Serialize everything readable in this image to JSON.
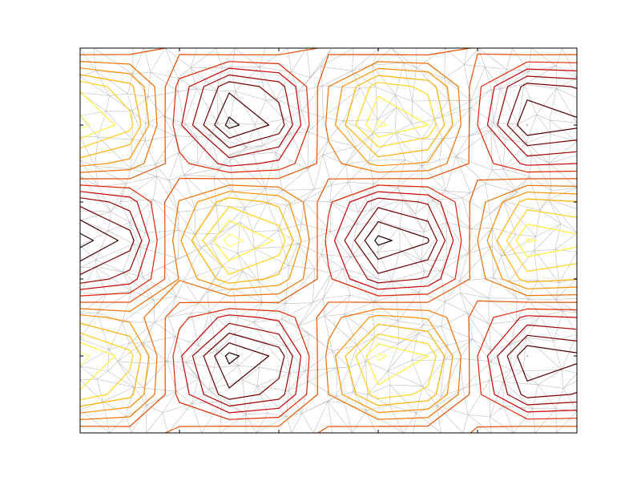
{
  "chart_data": {
    "type": "contour",
    "x": [
      0,
      0.5,
      1,
      1.5,
      2,
      2.5,
      3,
      3.5,
      4,
      4.5,
      5
    ],
    "y": [
      0,
      0.5,
      1,
      1.5,
      2,
      2.5,
      3,
      3.5,
      4,
      4.5,
      5
    ],
    "z": [
      [
        0.15,
        0.1,
        -0.04,
        -0.15,
        -0.11,
        0.03,
        0.14,
        0.12,
        -0.02,
        -0.14,
        -0.12
      ],
      [
        -0.72,
        -0.5,
        0.2,
        0.71,
        0.53,
        -0.15,
        -0.69,
        -0.56,
        0.11,
        0.67,
        0.59
      ],
      [
        -0.96,
        -0.66,
        0.27,
        0.95,
        0.7,
        -0.2,
        -0.93,
        -0.75,
        0.15,
        0.9,
        0.79
      ],
      [
        -0.36,
        -0.25,
        0.1,
        0.36,
        0.26,
        -0.08,
        -0.35,
        -0.28,
        0.06,
        0.34,
        0.3
      ],
      [
        0.55,
        0.38,
        -0.16,
        -0.55,
        -0.41,
        0.12,
        0.54,
        0.43,
        -0.08,
        -0.52,
        -0.46
      ],
      [
        0.98,
        0.68,
        -0.28,
        -0.97,
        -0.72,
        0.21,
        0.95,
        0.77,
        -0.15,
        -0.92,
        -0.81
      ],
      [
        0.55,
        0.38,
        -0.16,
        -0.55,
        -0.41,
        0.12,
        0.54,
        0.43,
        -0.08,
        -0.52,
        -0.46
      ],
      [
        -0.36,
        -0.25,
        0.1,
        0.36,
        0.26,
        -0.08,
        -0.35,
        -0.28,
        0.06,
        0.34,
        0.3
      ],
      [
        -0.96,
        -0.66,
        0.27,
        0.95,
        0.7,
        -0.2,
        -0.93,
        -0.75,
        0.15,
        0.9,
        0.79
      ],
      [
        -0.72,
        -0.5,
        0.2,
        0.71,
        0.53,
        -0.15,
        -0.69,
        -0.56,
        0.11,
        0.67,
        0.59
      ],
      [
        0.15,
        0.1,
        -0.04,
        -0.15,
        -0.11,
        0.03,
        0.14,
        0.12,
        -0.02,
        -0.14,
        -0.12
      ]
    ],
    "levels": [
      -0.9,
      -0.75,
      -0.6,
      -0.45,
      -0.3,
      -0.15,
      0,
      0.15,
      0.3,
      0.45,
      0.6,
      0.75,
      0.9
    ],
    "colors": [
      "#ffff66",
      "#fff033",
      "#ffd21a",
      "#ffb000",
      "#ff9000",
      "#f07000",
      "#e85000",
      "#e02800",
      "#c80000",
      "#a00000",
      "#780000",
      "#500000",
      "#200000"
    ],
    "xlim": [
      0,
      5
    ],
    "ylim": [
      0,
      5
    ],
    "xticks": [
      0,
      1,
      2,
      3,
      4,
      5
    ],
    "yticks": [
      0,
      1,
      2,
      3,
      4,
      5
    ]
  }
}
